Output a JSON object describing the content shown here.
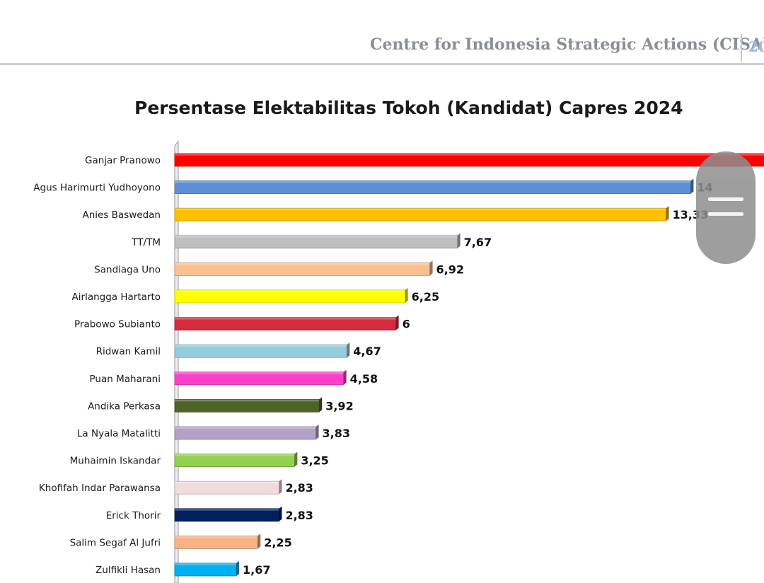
{
  "header": {
    "organization": "Centre for Indonesia Strategic Actions (CISA)",
    "year_fragment": "20"
  },
  "chart_data": {
    "type": "bar",
    "orientation": "horizontal",
    "title": "Persentase Elektabilitas Tokoh (Kandidat) Capres 2024",
    "xlabel": "",
    "ylabel": "",
    "xlim": [
      0,
      21
    ],
    "grid": false,
    "legend": "none",
    "categories": [
      "Ganjar Pranowo",
      "Agus Harimurti Yudhoyono",
      "Anies Baswedan",
      "TT/TM",
      "Sandiaga Uno",
      "Airlangga Hartarto",
      "Prabowo Subianto",
      "Ridwan Kamil",
      "Puan Maharani",
      "Andika Perkasa",
      "La Nyala Matalitti",
      "Muhaimin Iskandar",
      "Khofifah Indar Parawansa",
      "Erick Thorir",
      "Salim Segaf Al Jufri",
      "Zulfikli Hasan"
    ],
    "values": [
      21.2,
      14,
      13.33,
      7.67,
      6.92,
      6.25,
      6,
      4.67,
      4.58,
      3.92,
      3.83,
      3.25,
      2.83,
      2.83,
      2.25,
      1.67
    ],
    "data_labels": [
      "",
      "14",
      "13,33",
      "7,67",
      "6,92",
      "6,25",
      "6",
      "4,67",
      "4,58",
      "3,92",
      "3,83",
      "3,25",
      "2,83",
      "2,83",
      "2,25",
      "1,67"
    ],
    "colors": [
      "#ff0000",
      "#5b8fd6",
      "#ffc000",
      "#bfbfbf",
      "#fac090",
      "#ffff00",
      "#d42c3e",
      "#93cddd",
      "#ff40c8",
      "#4f6228",
      "#b3a2c7",
      "#92d050",
      "#f2dcdb",
      "#002060",
      "#f9b283",
      "#00b0f0"
    ]
  },
  "overlay": {
    "scroll_handle_icon": "drag-handle-icon"
  }
}
